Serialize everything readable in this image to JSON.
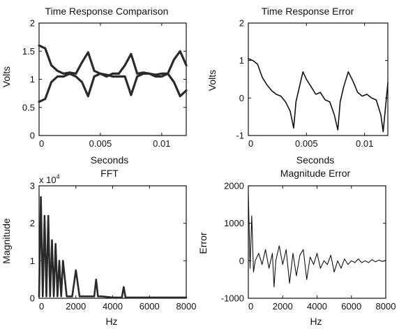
{
  "chart_data": [
    {
      "id": "time_cmp",
      "type": "line",
      "title": "Time Response Comparison",
      "xlabel": "Seconds",
      "ylabel": "Volts",
      "xlim": [
        0,
        0.012
      ],
      "ylim": [
        0,
        2
      ],
      "xticks": [
        0,
        0.005,
        0.01
      ],
      "xtick_labels": [
        "0",
        "0.005",
        "0.01"
      ],
      "yticks": [
        0,
        0.5,
        1,
        1.5,
        2
      ],
      "ytick_labels": [
        "0",
        "0.5",
        "1",
        "1.5",
        "2"
      ],
      "series": [
        {
          "x": [
            0,
            0.0005,
            0.001,
            0.0015,
            0.002,
            0.0025,
            0.003,
            0.0035,
            0.004,
            0.0045,
            0.005,
            0.0055,
            0.006,
            0.0065,
            0.007,
            0.0075,
            0.008,
            0.0085,
            0.009,
            0.0095,
            0.01,
            0.0105,
            0.011,
            0.0115,
            0.012
          ],
          "values": [
            1.6,
            1.55,
            1.25,
            1.15,
            1.1,
            1.12,
            1.1,
            1.3,
            1.48,
            1.15,
            1.1,
            1.05,
            1.1,
            1.1,
            1.25,
            1.45,
            1.1,
            1.12,
            1.1,
            1.08,
            1.1,
            1.1,
            1.35,
            1.5,
            1.25
          ],
          "color": "#2a2a2a"
        },
        {
          "x": [
            0,
            0.0005,
            0.001,
            0.0015,
            0.002,
            0.0025,
            0.003,
            0.0035,
            0.004,
            0.0045,
            0.005,
            0.0055,
            0.006,
            0.0065,
            0.007,
            0.0075,
            0.008,
            0.0085,
            0.009,
            0.0095,
            0.01,
            0.0105,
            0.011,
            0.0115,
            0.012
          ],
          "values": [
            0.6,
            0.65,
            0.95,
            1.05,
            1.05,
            1.1,
            1.05,
            0.95,
            0.7,
            1.05,
            1.1,
            1.08,
            1.05,
            1.05,
            1.05,
            0.72,
            1.05,
            1.1,
            1.1,
            1.05,
            1.05,
            1.1,
            0.95,
            0.7,
            0.8
          ],
          "color": "#2a2a2a"
        }
      ]
    },
    {
      "id": "time_err",
      "type": "line",
      "title": "Time Response Error",
      "xlabel": "Seconds",
      "ylabel": "Volts",
      "xlim": [
        0,
        0.012
      ],
      "ylim": [
        -1,
        2
      ],
      "xticks": [
        0,
        0.005,
        0.01
      ],
      "xtick_labels": [
        "0",
        "0.005",
        "0.01"
      ],
      "yticks": [
        -1,
        0,
        1,
        2
      ],
      "ytick_labels": [
        "-1",
        "0",
        "1",
        "2"
      ],
      "series": [
        {
          "x": [
            0,
            0.0004,
            0.0008,
            0.0012,
            0.0016,
            0.002,
            0.0024,
            0.0028,
            0.0032,
            0.0036,
            0.0039,
            0.0041,
            0.0044,
            0.0047,
            0.005,
            0.0054,
            0.0058,
            0.0062,
            0.0066,
            0.007,
            0.0074,
            0.0077,
            0.0079,
            0.0082,
            0.0086,
            0.009,
            0.0094,
            0.0098,
            0.0102,
            0.0106,
            0.011,
            0.0114,
            0.0116,
            0.012
          ],
          "values": [
            1.05,
            1.0,
            0.9,
            0.55,
            0.35,
            0.2,
            0.1,
            0.05,
            -0.1,
            -0.35,
            -0.8,
            -0.1,
            0.3,
            0.7,
            0.5,
            0.3,
            0.1,
            0.15,
            -0.05,
            -0.1,
            -0.45,
            -0.85,
            -0.1,
            0.3,
            0.7,
            0.45,
            0.15,
            0.05,
            0.1,
            0.0,
            -0.05,
            -0.45,
            -0.9,
            0.4
          ],
          "color": "#111111"
        }
      ]
    },
    {
      "id": "fft",
      "type": "line",
      "title": "FFT",
      "xlabel": "Hz",
      "ylabel": "Magnitude",
      "multiplier_label": "x 10",
      "multiplier_exp": "4",
      "xlim": [
        0,
        8000
      ],
      "ylim": [
        0,
        3
      ],
      "xticks": [
        0,
        2000,
        4000,
        6000,
        8000
      ],
      "xtick_labels": [
        "0",
        "2000",
        "4000",
        "6000",
        "8000"
      ],
      "yticks": [
        0,
        1,
        2,
        3
      ],
      "ytick_labels": [
        "0",
        "1",
        "2",
        "3"
      ],
      "series": [
        {
          "x": [
            0,
            100,
            200,
            300,
            400,
            500,
            600,
            700,
            800,
            900,
            1000,
            1100,
            1200,
            1300,
            1500,
            1800,
            2000,
            2200,
            2600,
            3000,
            3100,
            3200,
            3400,
            4000,
            4500,
            4600,
            4700,
            4900,
            5500,
            6000,
            7000,
            8000
          ],
          "values": [
            0.05,
            2.7,
            0.05,
            2.2,
            0.05,
            2.2,
            0.05,
            1.55,
            0.05,
            1.45,
            0.05,
            1.0,
            0.05,
            1.0,
            0.05,
            0.05,
            0.75,
            0.05,
            0.05,
            0.05,
            0.5,
            0.05,
            0.05,
            0.02,
            0.02,
            0.3,
            0.02,
            0.02,
            0.02,
            0.02,
            0.02,
            0.02
          ],
          "color": "#2a2a2a"
        }
      ]
    },
    {
      "id": "mag_err",
      "type": "line",
      "title": "Magnitude Error",
      "xlabel": "Hz",
      "ylabel": "Error",
      "xlim": [
        0,
        8000
      ],
      "ylim": [
        -1000,
        2000
      ],
      "xticks": [
        0,
        2000,
        4000,
        6000,
        8000
      ],
      "xtick_labels": [
        "0",
        "2000",
        "4000",
        "6000",
        "8000"
      ],
      "yticks": [
        -1000,
        0,
        1000,
        2000
      ],
      "ytick_labels": [
        "-1000",
        "0",
        "1000",
        "2000"
      ],
      "series": [
        {
          "x": [
            0,
            100,
            200,
            300,
            400,
            600,
            800,
            1000,
            1200,
            1400,
            1500,
            1600,
            1800,
            2000,
            2200,
            2400,
            2600,
            2800,
            3000,
            3200,
            3400,
            3600,
            3800,
            4000,
            4200,
            4400,
            4600,
            4800,
            5000,
            5200,
            5400,
            5600,
            5800,
            6000,
            6200,
            6400,
            6600,
            6800,
            7000,
            7200,
            7400,
            7600,
            7800,
            8000
          ],
          "values": [
            1800,
            -200,
            1200,
            -300,
            0,
            200,
            -100,
            300,
            -200,
            200,
            -700,
            0,
            400,
            -100,
            300,
            -600,
            200,
            -400,
            150,
            300,
            -500,
            100,
            -100,
            200,
            -200,
            0,
            -100,
            150,
            -300,
            0,
            -200,
            50,
            -100,
            0,
            -50,
            50,
            -50,
            0,
            -50,
            30,
            -30,
            20,
            -20,
            10
          ],
          "color": "#111111"
        }
      ]
    }
  ]
}
